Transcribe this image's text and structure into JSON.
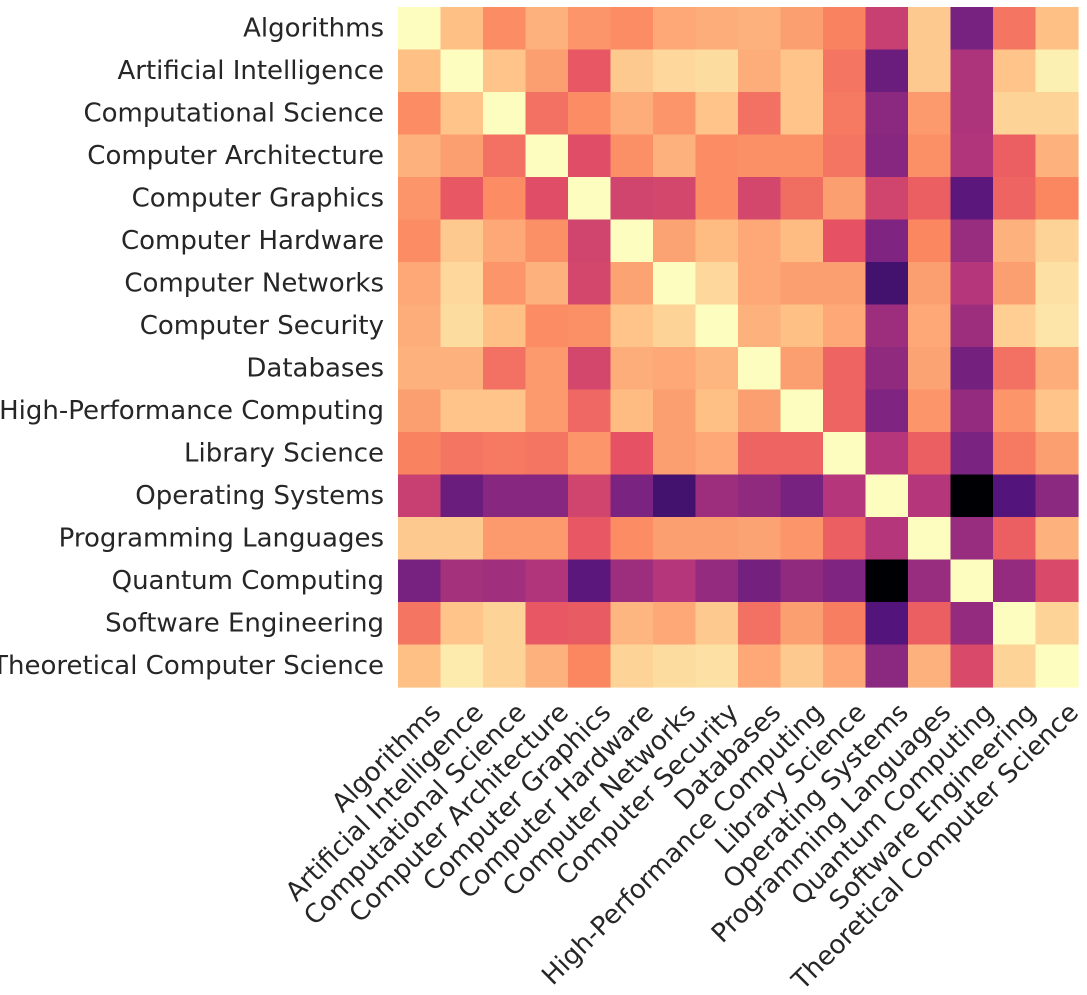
{
  "chart_data": {
    "type": "heatmap",
    "title": "",
    "xlabel": "",
    "ylabel": "",
    "colormap": "magma",
    "vrange": [
      0,
      1
    ],
    "categories": [
      "Algorithms",
      "Artificial Intelligence",
      "Computational Science",
      "Computer Architecture",
      "Computer Graphics",
      "Computer Hardware",
      "Computer Networks",
      "Computer Security",
      "Databases",
      "High-Performance Computing",
      "Library Science",
      "Operating Systems",
      "Programming Languages",
      "Quantum Computing",
      "Software Engineering",
      "Theoretical Computer Science"
    ],
    "values": [
      [
        1.0,
        0.87,
        0.76,
        0.84,
        0.78,
        0.76,
        0.82,
        0.83,
        0.84,
        0.8,
        0.74,
        0.55,
        0.89,
        0.35,
        0.71,
        0.87
      ],
      [
        0.87,
        1.0,
        0.88,
        0.8,
        0.64,
        0.89,
        0.92,
        0.93,
        0.83,
        0.88,
        0.71,
        0.32,
        0.89,
        0.48,
        0.88,
        0.97
      ],
      [
        0.76,
        0.88,
        1.0,
        0.7,
        0.76,
        0.83,
        0.78,
        0.88,
        0.7,
        0.88,
        0.72,
        0.4,
        0.79,
        0.48,
        0.91,
        0.91
      ],
      [
        0.84,
        0.8,
        0.7,
        1.0,
        0.61,
        0.77,
        0.84,
        0.76,
        0.77,
        0.77,
        0.71,
        0.39,
        0.77,
        0.49,
        0.66,
        0.84
      ],
      [
        0.78,
        0.64,
        0.76,
        0.61,
        1.0,
        0.57,
        0.58,
        0.76,
        0.58,
        0.69,
        0.8,
        0.57,
        0.66,
        0.28,
        0.67,
        0.75
      ],
      [
        0.76,
        0.89,
        0.82,
        0.77,
        0.57,
        1.0,
        0.81,
        0.86,
        0.82,
        0.86,
        0.63,
        0.37,
        0.75,
        0.43,
        0.84,
        0.91
      ],
      [
        0.82,
        0.92,
        0.78,
        0.84,
        0.58,
        0.81,
        1.0,
        0.92,
        0.82,
        0.8,
        0.8,
        0.22,
        0.8,
        0.5,
        0.8,
        0.94
      ],
      [
        0.83,
        0.93,
        0.87,
        0.76,
        0.77,
        0.88,
        0.91,
        1.0,
        0.84,
        0.87,
        0.82,
        0.44,
        0.82,
        0.44,
        0.9,
        0.95
      ],
      [
        0.84,
        0.84,
        0.7,
        0.79,
        0.58,
        0.83,
        0.82,
        0.85,
        1.0,
        0.8,
        0.67,
        0.41,
        0.81,
        0.34,
        0.7,
        0.83
      ],
      [
        0.8,
        0.88,
        0.88,
        0.79,
        0.68,
        0.86,
        0.8,
        0.87,
        0.8,
        1.0,
        0.67,
        0.37,
        0.78,
        0.42,
        0.78,
        0.88
      ],
      [
        0.74,
        0.71,
        0.72,
        0.71,
        0.78,
        0.63,
        0.8,
        0.82,
        0.67,
        0.67,
        1.0,
        0.5,
        0.66,
        0.36,
        0.72,
        0.8
      ],
      [
        0.55,
        0.32,
        0.39,
        0.39,
        0.57,
        0.36,
        0.22,
        0.44,
        0.41,
        0.35,
        0.5,
        1.0,
        0.5,
        0.0,
        0.26,
        0.4
      ],
      [
        0.89,
        0.89,
        0.79,
        0.79,
        0.64,
        0.76,
        0.8,
        0.8,
        0.81,
        0.78,
        0.66,
        0.5,
        1.0,
        0.43,
        0.66,
        0.84
      ],
      [
        0.35,
        0.46,
        0.45,
        0.49,
        0.28,
        0.44,
        0.5,
        0.42,
        0.34,
        0.41,
        0.37,
        0.0,
        0.43,
        1.0,
        0.42,
        0.59
      ],
      [
        0.71,
        0.88,
        0.91,
        0.64,
        0.65,
        0.85,
        0.82,
        0.89,
        0.7,
        0.8,
        0.73,
        0.26,
        0.66,
        0.42,
        1.0,
        0.91
      ],
      [
        0.87,
        0.96,
        0.91,
        0.84,
        0.75,
        0.91,
        0.93,
        0.94,
        0.82,
        0.89,
        0.82,
        0.4,
        0.84,
        0.59,
        0.91,
        1.0
      ]
    ]
  }
}
